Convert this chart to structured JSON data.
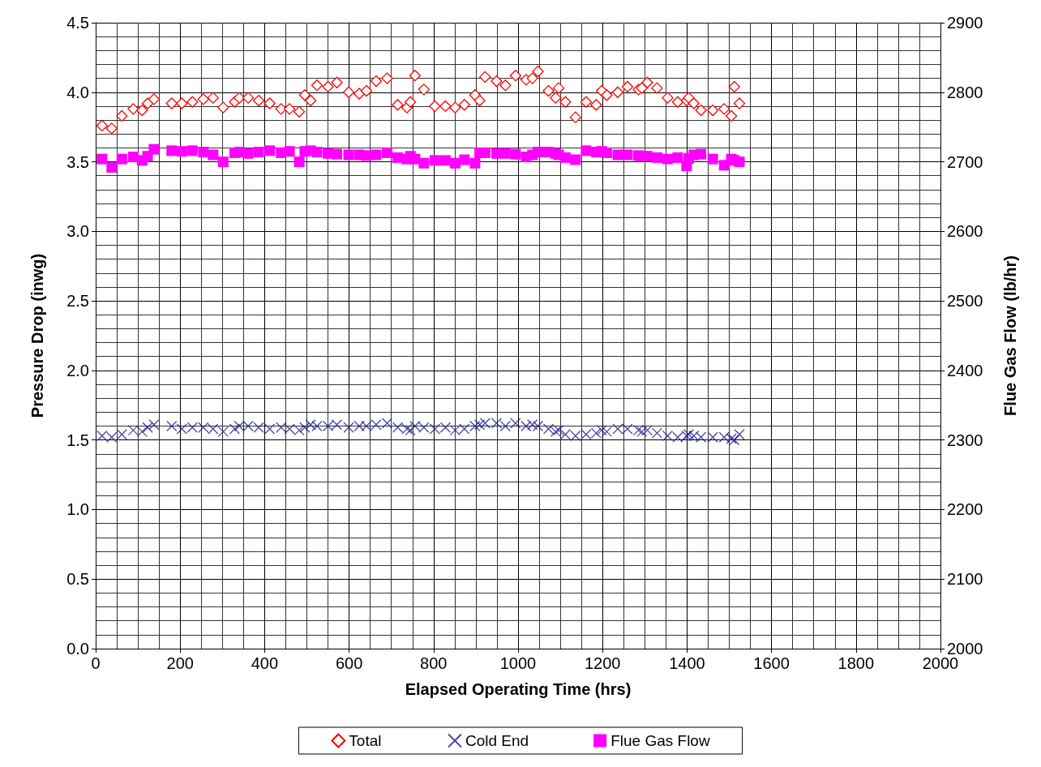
{
  "chart_data": {
    "type": "scatter",
    "xlabel": "Elapsed Operating Time (hrs)",
    "ylabel": "Pressure Drop (inwg)",
    "y2label": "Flue Gas Flow (lb/hr)",
    "xlim": [
      0,
      2000
    ],
    "xticks": [
      0,
      200,
      400,
      600,
      800,
      1000,
      1200,
      1400,
      1600,
      1800,
      2000
    ],
    "ylim": [
      0,
      4.5
    ],
    "yticks": [
      {
        "value": 0,
        "label": "0.0"
      },
      {
        "value": 0.5,
        "label": "0.5"
      },
      {
        "value": 1,
        "label": "1.0"
      },
      {
        "value": 1.5,
        "label": "1.5"
      },
      {
        "value": 2,
        "label": "2.0"
      },
      {
        "value": 2.5,
        "label": "2.5"
      },
      {
        "value": 3,
        "label": "3.0"
      },
      {
        "value": 3.5,
        "label": "3.5"
      },
      {
        "value": 4,
        "label": "4.0"
      },
      {
        "value": 4.5,
        "label": "4.5"
      }
    ],
    "y2lim": [
      2000,
      2900
    ],
    "y2ticks": [
      2000,
      2100,
      2200,
      2300,
      2400,
      2500,
      2600,
      2700,
      2800,
      2900
    ],
    "grid": true,
    "legend": "bottom",
    "series": [
      {
        "name": "Total",
        "color": "#ff0000",
        "marker": "diamond",
        "x": [
          15,
          38,
          62,
          89,
          110,
          123,
          138,
          180,
          204,
          229,
          255,
          278,
          302,
          329,
          340,
          361,
          386,
          412,
          439,
          459,
          482,
          495,
          509,
          524,
          550,
          571,
          599,
          624,
          641,
          664,
          690,
          715,
          737,
          745,
          756,
          777,
          803,
          828,
          851,
          873,
          898,
          909,
          922,
          949,
          970,
          994,
          1019,
          1034,
          1047,
          1072,
          1089,
          1096,
          1112,
          1136,
          1161,
          1185,
          1198,
          1210,
          1236,
          1259,
          1285,
          1293,
          1306,
          1329,
          1354,
          1378,
          1399,
          1404,
          1416,
          1433,
          1461,
          1488,
          1505,
          1512,
          1524
        ],
        "values": [
          3.76,
          3.74,
          3.83,
          3.88,
          3.87,
          3.92,
          3.95,
          3.92,
          3.92,
          3.93,
          3.95,
          3.96,
          3.89,
          3.93,
          3.96,
          3.96,
          3.94,
          3.92,
          3.88,
          3.88,
          3.86,
          3.98,
          3.94,
          4.05,
          4.04,
          4.07,
          4.0,
          3.99,
          4.01,
          4.08,
          4.1,
          3.91,
          3.89,
          3.93,
          4.12,
          4.02,
          3.9,
          3.9,
          3.89,
          3.91,
          3.98,
          3.94,
          4.11,
          4.08,
          4.05,
          4.12,
          4.09,
          4.1,
          4.15,
          4.01,
          3.96,
          4.03,
          3.93,
          3.82,
          3.93,
          3.91,
          4.01,
          3.98,
          4.0,
          4.04,
          4.02,
          4.03,
          4.07,
          4.03,
          3.96,
          3.93,
          3.94,
          3.96,
          3.92,
          3.87,
          3.87,
          3.88,
          3.83,
          4.04,
          3.92
        ]
      },
      {
        "name": "Cold End",
        "color": "#1a1a8c",
        "marker": "cross",
        "x": [
          15,
          38,
          62,
          89,
          110,
          123,
          138,
          180,
          204,
          229,
          255,
          278,
          302,
          329,
          340,
          361,
          386,
          412,
          439,
          459,
          482,
          495,
          509,
          524,
          550,
          571,
          599,
          624,
          641,
          664,
          690,
          715,
          737,
          745,
          756,
          777,
          803,
          828,
          851,
          873,
          898,
          909,
          922,
          949,
          970,
          994,
          1019,
          1034,
          1047,
          1072,
          1089,
          1096,
          1112,
          1136,
          1161,
          1185,
          1198,
          1210,
          1236,
          1259,
          1285,
          1293,
          1306,
          1329,
          1354,
          1378,
          1399,
          1404,
          1416,
          1433,
          1461,
          1488,
          1505,
          1512,
          1524
        ],
        "values": [
          1.53,
          1.52,
          1.54,
          1.57,
          1.56,
          1.59,
          1.61,
          1.6,
          1.58,
          1.59,
          1.59,
          1.58,
          1.56,
          1.58,
          1.6,
          1.6,
          1.59,
          1.58,
          1.59,
          1.58,
          1.57,
          1.59,
          1.61,
          1.6,
          1.6,
          1.61,
          1.59,
          1.6,
          1.6,
          1.61,
          1.62,
          1.59,
          1.58,
          1.57,
          1.6,
          1.59,
          1.58,
          1.59,
          1.57,
          1.58,
          1.6,
          1.61,
          1.62,
          1.62,
          1.6,
          1.62,
          1.6,
          1.61,
          1.6,
          1.58,
          1.56,
          1.57,
          1.54,
          1.53,
          1.54,
          1.55,
          1.57,
          1.56,
          1.58,
          1.58,
          1.57,
          1.56,
          1.57,
          1.55,
          1.53,
          1.52,
          1.53,
          1.54,
          1.53,
          1.52,
          1.52,
          1.52,
          1.51,
          1.5,
          1.54
        ]
      },
      {
        "name": "Flue Gas Flow",
        "color": "#ff00ff",
        "marker": "square",
        "axis": "y2",
        "x": [
          15,
          38,
          62,
          89,
          110,
          123,
          138,
          180,
          204,
          229,
          255,
          278,
          302,
          329,
          340,
          361,
          386,
          412,
          439,
          459,
          482,
          495,
          509,
          524,
          550,
          571,
          599,
          624,
          641,
          664,
          690,
          715,
          737,
          745,
          756,
          777,
          803,
          828,
          851,
          873,
          898,
          909,
          922,
          949,
          970,
          994,
          1019,
          1034,
          1047,
          1072,
          1089,
          1096,
          1112,
          1136,
          1161,
          1185,
          1198,
          1210,
          1236,
          1259,
          1285,
          1293,
          1306,
          1329,
          1354,
          1378,
          1399,
          1404,
          1416,
          1433,
          1461,
          1488,
          1505,
          1512,
          1524
        ],
        "values": [
          2704,
          2692,
          2704,
          2707,
          2702,
          2708,
          2718,
          2716,
          2715,
          2716,
          2714,
          2710,
          2700,
          2713,
          2714,
          2712,
          2714,
          2716,
          2713,
          2715,
          2700,
          2715,
          2716,
          2714,
          2712,
          2711,
          2710,
          2710,
          2709,
          2710,
          2713,
          2706,
          2704,
          2708,
          2704,
          2698,
          2702,
          2702,
          2698,
          2703,
          2698,
          2713,
          2713,
          2712,
          2712,
          2711,
          2707,
          2710,
          2714,
          2714,
          2712,
          2710,
          2706,
          2703,
          2716,
          2714,
          2715,
          2713,
          2710,
          2710,
          2709,
          2708,
          2708,
          2706,
          2704,
          2706,
          2694,
          2705,
          2710,
          2711,
          2704,
          2695,
          2704,
          2702,
          2700
        ]
      }
    ]
  }
}
